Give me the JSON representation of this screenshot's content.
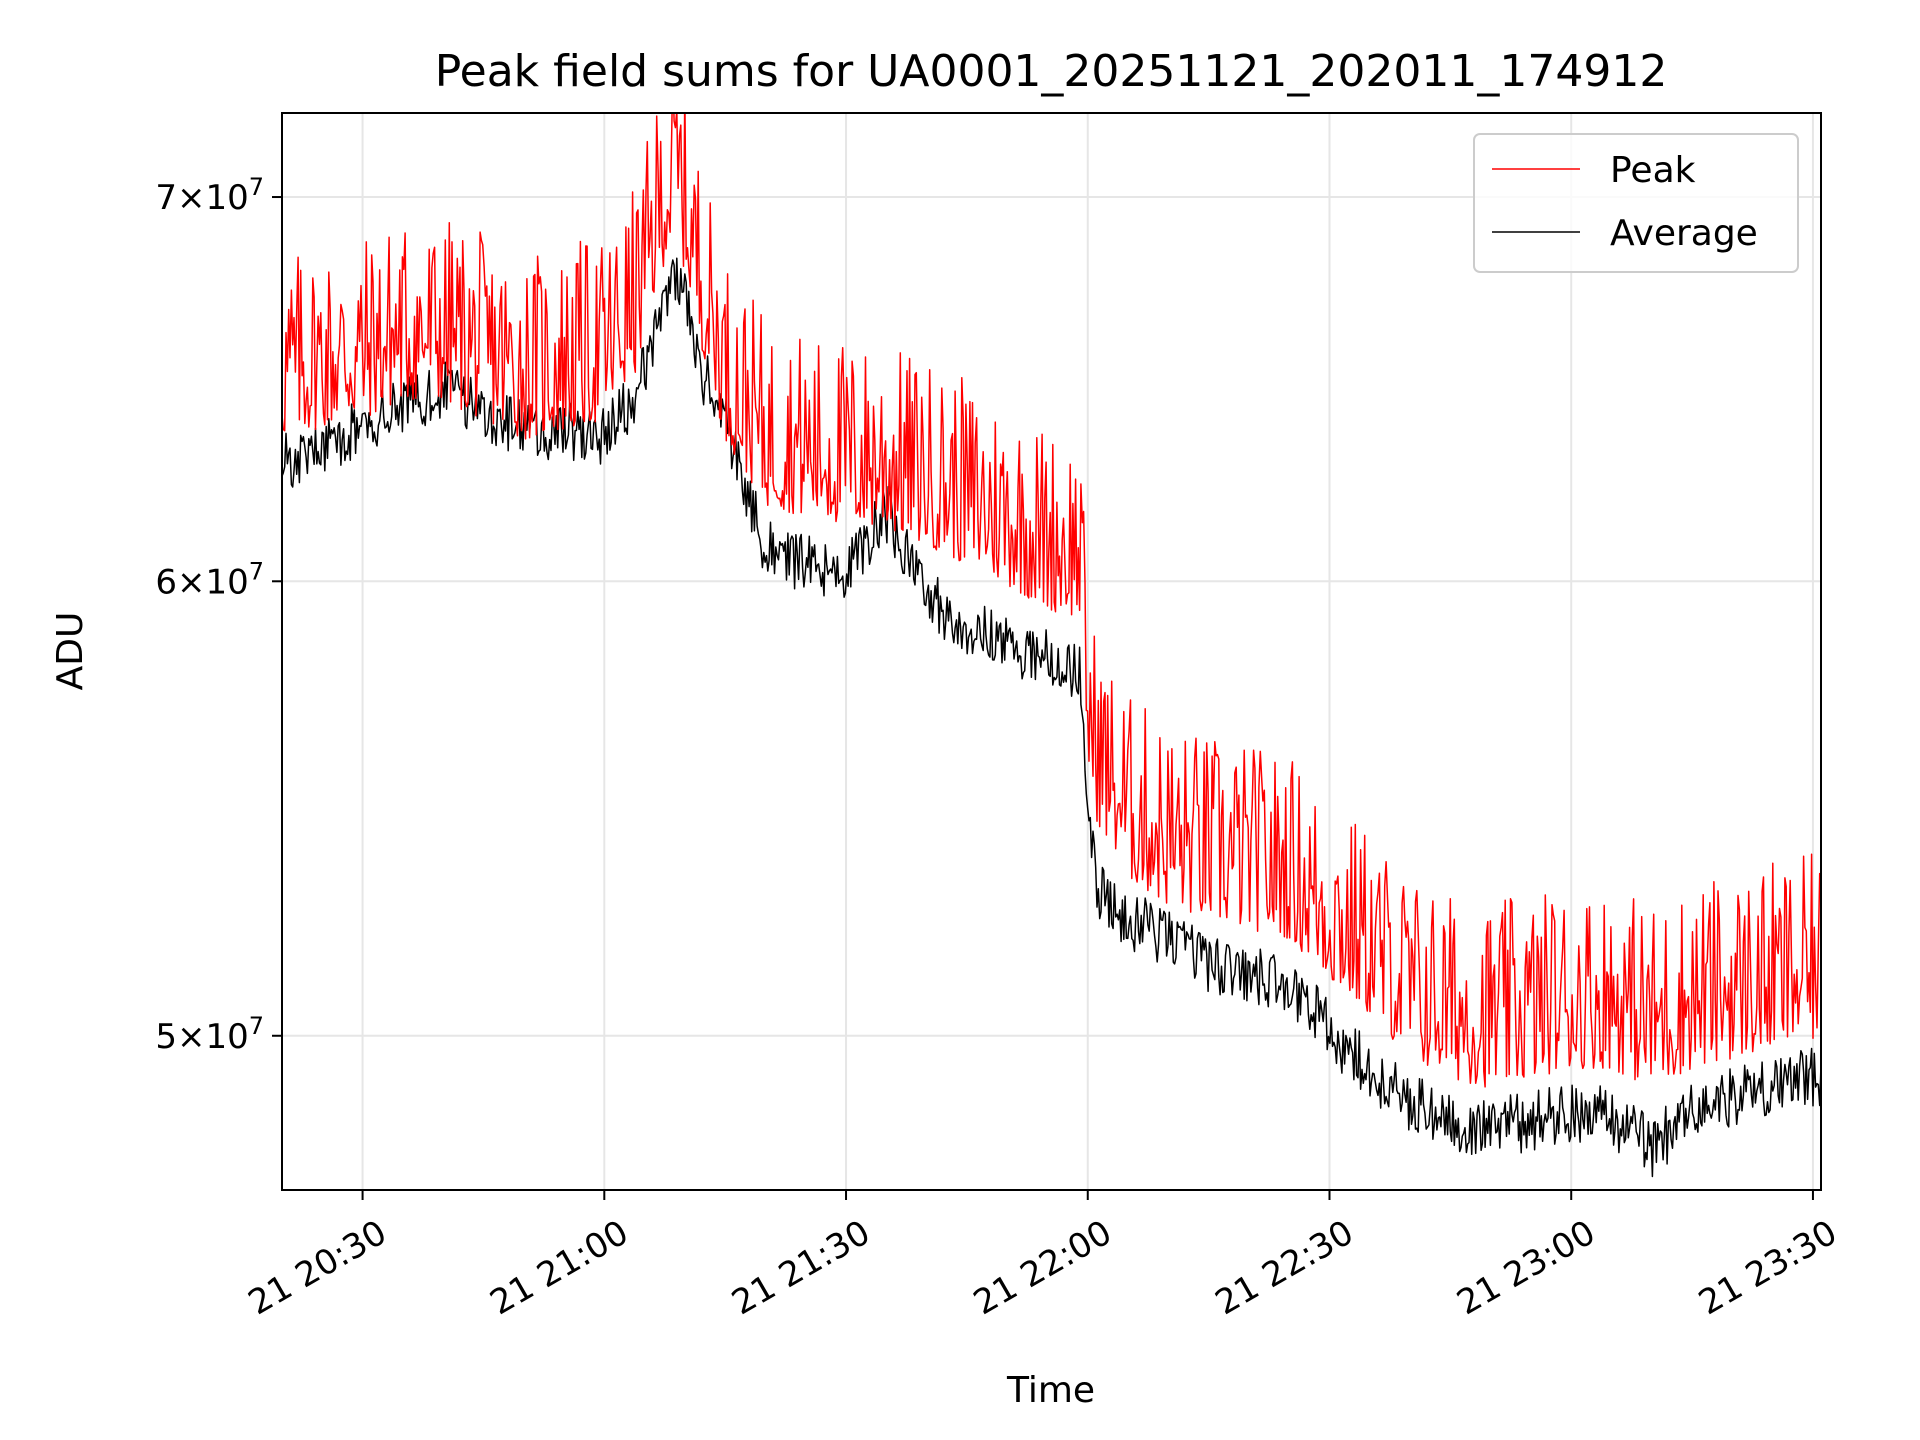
{
  "chart_data": {
    "type": "line",
    "title": "Peak field sums for UA0001_20251121_202011_174912",
    "xlabel": "Time",
    "ylabel": "ADU",
    "y_scale": "log",
    "grid": true,
    "legend_position": "top-right",
    "x_range": [
      "21 20:20",
      "21 23:31"
    ],
    "ylim": [
      47000000,
      72400000
    ],
    "x_ticks": [
      "21 20:30",
      "21 21:00",
      "21 21:30",
      "21 22:00",
      "21 22:30",
      "21 23:00",
      "21 23:30"
    ],
    "y_ticks": [
      {
        "value": 50000000,
        "mantissa": "5",
        "base": "10",
        "exponent": "7"
      },
      {
        "value": 60000000,
        "mantissa": "6",
        "base": "10",
        "exponent": "7"
      },
      {
        "value": 70000000,
        "mantissa": "7",
        "base": "10",
        "exponent": "7"
      }
    ],
    "x": [
      "21 20:20",
      "21 20:25",
      "21 20:30",
      "21 20:35",
      "21 20:40",
      "21 20:45",
      "21 20:50",
      "21 20:55",
      "21 21:00",
      "21 21:04",
      "21 21:07",
      "21 21:09",
      "21 21:12",
      "21 21:15",
      "21 21:20",
      "21 21:25",
      "21 21:30",
      "21 21:35",
      "21 21:40",
      "21 21:45",
      "21 21:50",
      "21 21:55",
      "21 21:59",
      "21 22:00",
      "21 22:01",
      "21 22:05",
      "21 22:10",
      "21 22:15",
      "21 22:20",
      "21 22:25",
      "21 22:30",
      "21 22:35",
      "21 22:40",
      "21 22:45",
      "21 22:50",
      "21 22:55",
      "21 23:00",
      "21 23:05",
      "21 23:10",
      "21 23:15",
      "21 23:20",
      "21 23:25",
      "21 23:31"
    ],
    "series": [
      {
        "name": "Peak",
        "color": "#ff0000",
        "values": [
          65000000,
          65300000,
          65500000,
          66000000,
          66000000,
          65500000,
          65000000,
          65200000,
          65500000,
          66800000,
          69500000,
          70500000,
          67500000,
          65000000,
          63300000,
          63000000,
          62800000,
          62700000,
          62300000,
          61800000,
          61300000,
          60700000,
          60500000,
          57000000,
          55800000,
          54500000,
          53900000,
          53600000,
          53400000,
          53200000,
          52300000,
          51600000,
          50700000,
          50300000,
          50100000,
          50300000,
          50500000,
          50500000,
          50100000,
          50500000,
          50700000,
          50900000,
          51100000
        ]
      },
      {
        "name": "Average",
        "color": "#000000",
        "values": [
          62900000,
          63300000,
          63900000,
          64300000,
          64800000,
          64300000,
          63700000,
          63700000,
          63600000,
          64600000,
          67000000,
          68000000,
          65300000,
          64000000,
          60800000,
          60400000,
          60200000,
          61700000,
          59600000,
          58900000,
          58500000,
          58200000,
          57800000,
          55300000,
          53000000,
          52400000,
          52000000,
          51500000,
          51200000,
          51100000,
          50100000,
          49300000,
          48700000,
          48300000,
          48200000,
          48300000,
          48500000,
          48400000,
          47800000,
          48500000,
          48800000,
          49000000,
          49200000
        ]
      }
    ]
  }
}
